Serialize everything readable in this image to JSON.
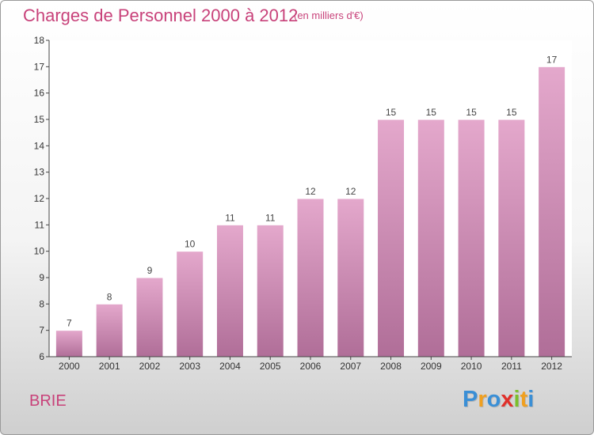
{
  "title": "Charges de Personnel 2000 à 2012",
  "subtitle": "(en milliers d'€)",
  "town": "BRIE",
  "logo": {
    "text": "Proxiti",
    "letters": [
      {
        "ch": "P",
        "color": "#3a8fd6"
      },
      {
        "ch": "r",
        "color": "#f0a020"
      },
      {
        "ch": "o",
        "color": "#3a8fd6"
      },
      {
        "ch": "x",
        "color": "#e0302a"
      },
      {
        "ch": "i",
        "color": "#7bbf2a"
      },
      {
        "ch": "t",
        "color": "#f0a020"
      },
      {
        "ch": "i",
        "color": "#3a8fd6"
      }
    ]
  },
  "chart_data": {
    "type": "bar",
    "categories": [
      "2000",
      "2001",
      "2002",
      "2003",
      "2004",
      "2005",
      "2006",
      "2007",
      "2008",
      "2009",
      "2010",
      "2011",
      "2012"
    ],
    "values": [
      7,
      8,
      9,
      10,
      11,
      11,
      12,
      12,
      15,
      15,
      15,
      15,
      17
    ],
    "data_labels": [
      "7",
      "8",
      "9",
      "10",
      "11",
      "11",
      "12",
      "12",
      "15",
      "15",
      "15",
      "15",
      "17"
    ],
    "ylim": [
      6,
      18
    ],
    "yticks": [
      6,
      7,
      8,
      9,
      10,
      11,
      12,
      13,
      14,
      15,
      16,
      17,
      18
    ],
    "grid": false,
    "bar_color_top": "#e4a8cc",
    "bar_color_bottom": "#b06e98"
  }
}
